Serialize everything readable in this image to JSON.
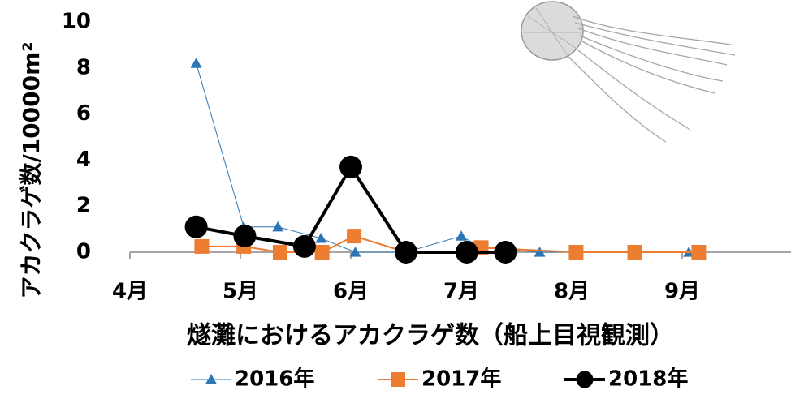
{
  "chart_data": {
    "type": "line",
    "y_label": "アカクラゲ数/10000m²",
    "x_label": "燧灘におけるアカクラゲ数（船上目視観測）",
    "xlim": [
      4,
      10
    ],
    "xticks": [
      {
        "value": 4,
        "label": "4月"
      },
      {
        "value": 5,
        "label": "5月"
      },
      {
        "value": 6,
        "label": "6月"
      },
      {
        "value": 7,
        "label": "7月"
      },
      {
        "value": 8,
        "label": "8月"
      },
      {
        "value": 9,
        "label": "9月"
      }
    ],
    "ylim": [
      0,
      10
    ],
    "yticks": [
      0,
      2,
      4,
      6,
      8,
      10
    ],
    "legend": "bottom",
    "series": [
      {
        "name": "2016年",
        "color": "#2e75b6",
        "marker": "triangle",
        "x": [
          4.6,
          5.03,
          5.34,
          5.73,
          6.04,
          6.5,
          7.0,
          7.18,
          7.71,
          9.06
        ],
        "values": [
          8.2,
          1.1,
          1.1,
          0.6,
          0,
          0,
          0.7,
          0.2,
          0,
          0
        ]
      },
      {
        "name": "2017年",
        "color": "#ed7d31",
        "marker": "square",
        "x": [
          4.65,
          5.03,
          5.36,
          5.74,
          6.03,
          6.5,
          7.05,
          7.18,
          8.04,
          8.57,
          9.15
        ],
        "values": [
          0.25,
          0.25,
          0,
          0,
          0.7,
          0,
          0,
          0.2,
          0,
          0,
          0
        ]
      },
      {
        "name": "2018年",
        "color": "#000000",
        "marker": "circle",
        "x": [
          4.6,
          5.04,
          5.58,
          6.0,
          6.5,
          7.05,
          7.4
        ],
        "values": [
          1.1,
          0.7,
          0.25,
          3.7,
          0,
          0,
          0
        ]
      }
    ]
  }
}
